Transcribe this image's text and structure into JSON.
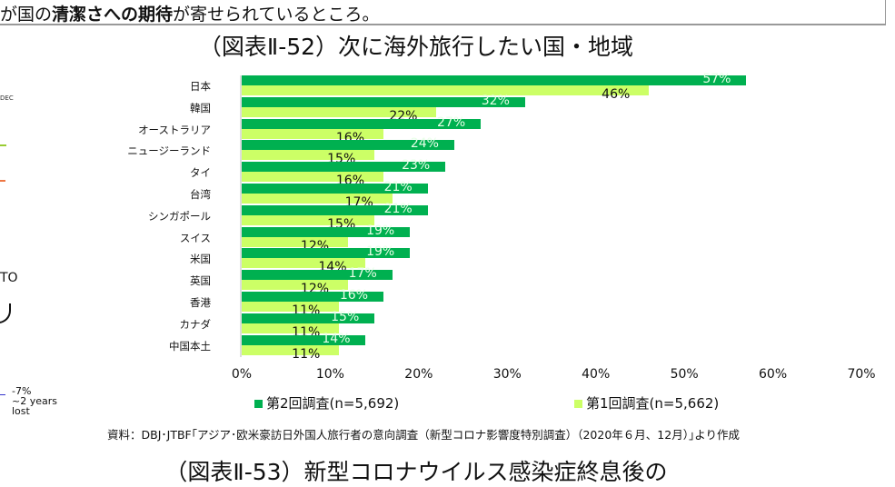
{
  "top_text": {
    "pre": "が国の",
    "bold": "清潔さへの期待",
    "post": "が寄せられているところ。"
  },
  "figure_title": "（図表Ⅱ-52）次に海外旅行したい国・地域",
  "next_figure_title": "（図表Ⅱ-53）新型コロナウイルス感染症終息後の",
  "left_fragments": {
    "dec": "DEC",
    "to": "TO",
    "note": [
      "-7%",
      "~2 years",
      "lost"
    ]
  },
  "source": "資料：DBJ･JTBF｢アジア･欧米豪訪日外国人旅行者の意向調査（新型コロナ影響度特別調査）（2020年６月、12月）｣より作成",
  "chart_data": {
    "type": "bar",
    "orientation": "horizontal",
    "categories": [
      "日本",
      "韓国",
      "オーストラリア",
      "ニュージーランド",
      "タイ",
      "台湾",
      "シンガポール",
      "スイス",
      "米国",
      "英国",
      "香港",
      "カナダ",
      "中国本土"
    ],
    "series": [
      {
        "name": "第2回調査(n=5,692)",
        "color": "#00b050",
        "values": [
          57,
          32,
          27,
          24,
          23,
          21,
          21,
          19,
          19,
          17,
          16,
          15,
          14
        ]
      },
      {
        "name": "第1回調査(n=5,662)",
        "color": "#ccff66",
        "values": [
          46,
          22,
          16,
          15,
          16,
          17,
          15,
          12,
          14,
          12,
          11,
          11,
          11
        ]
      }
    ],
    "xlim": [
      0,
      70
    ],
    "xticks": [
      "0%",
      "10%",
      "20%",
      "30%",
      "40%",
      "50%",
      "60%",
      "70%"
    ],
    "legend": "bottom",
    "grid": false
  }
}
